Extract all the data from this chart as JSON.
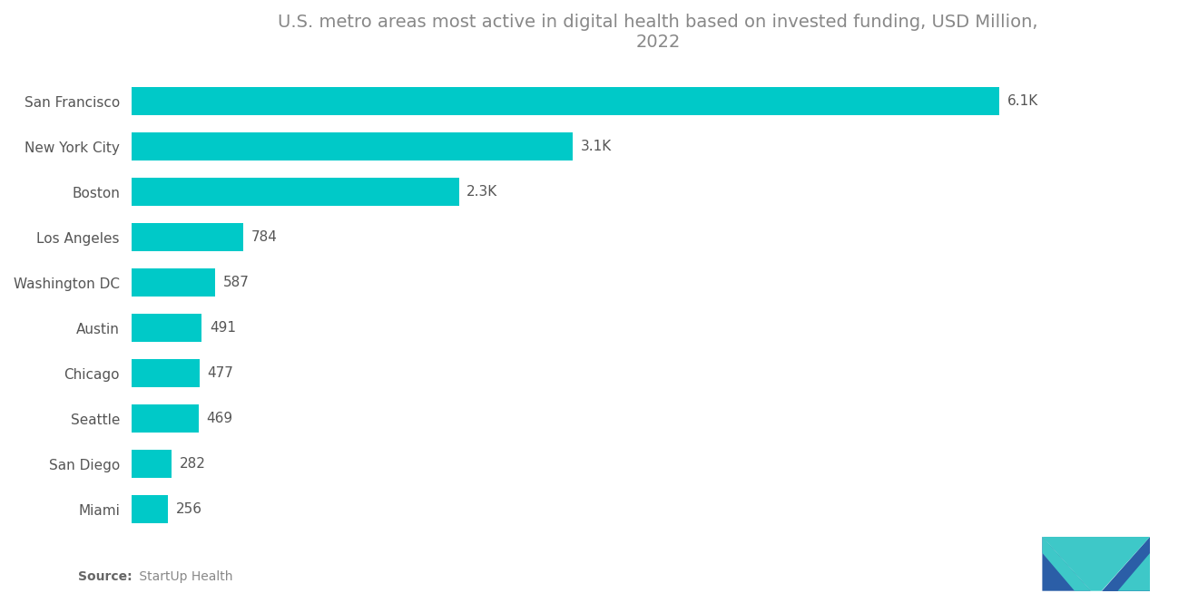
{
  "title": "U.S. metro areas most active in digital health based on invested funding, USD Million,\n2022",
  "categories": [
    "Miami",
    "San Diego",
    "Seattle",
    "Chicago",
    "Austin",
    "Washington DC",
    "Los Angeles",
    "Boston",
    "New York City",
    "San Francisco"
  ],
  "values": [
    256,
    282,
    469,
    477,
    491,
    587,
    784,
    2300,
    3100,
    6100
  ],
  "labels": [
    "256",
    "282",
    "469",
    "477",
    "491",
    "587",
    "784",
    "2.3K",
    "3.1K",
    "6.1K"
  ],
  "bar_color": "#00C9C8",
  "background_color": "#ffffff",
  "source_bold": "Source:",
  "source_rest": " StartUp Health",
  "title_fontsize": 14,
  "label_fontsize": 11,
  "tick_fontsize": 11,
  "source_fontsize": 10,
  "logo_colors": {
    "dark_blue": "#2b5ea7",
    "teal": "#3ec8c8",
    "mid_blue": "#3a7dbf"
  }
}
